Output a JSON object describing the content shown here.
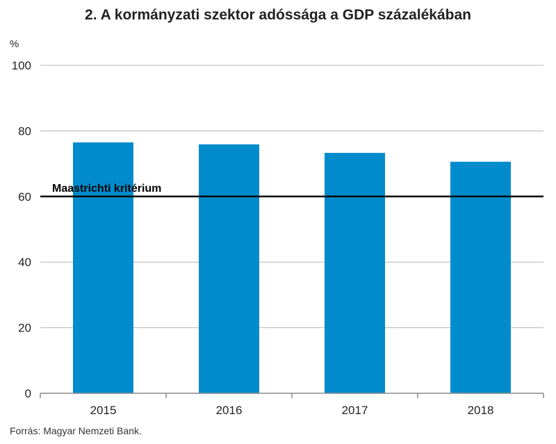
{
  "chart_data": {
    "type": "bar",
    "title": "2. A kormányzati szektor adóssága a GDP százalékában",
    "ylabel": "%",
    "xlabel": "",
    "categories": [
      "2015",
      "2016",
      "2017",
      "2018"
    ],
    "values": [
      76.5,
      75.9,
      73.3,
      70.6
    ],
    "ylim": [
      0,
      100
    ],
    "yticks": [
      0,
      20,
      40,
      60,
      80,
      100
    ],
    "grid": true,
    "bar_color": "#008ccc",
    "reference_line": {
      "value": 60,
      "label": "Maastrichti kritérium",
      "color": "#000000"
    },
    "source": "Forrás: Magyar Nemzeti Bank."
  }
}
